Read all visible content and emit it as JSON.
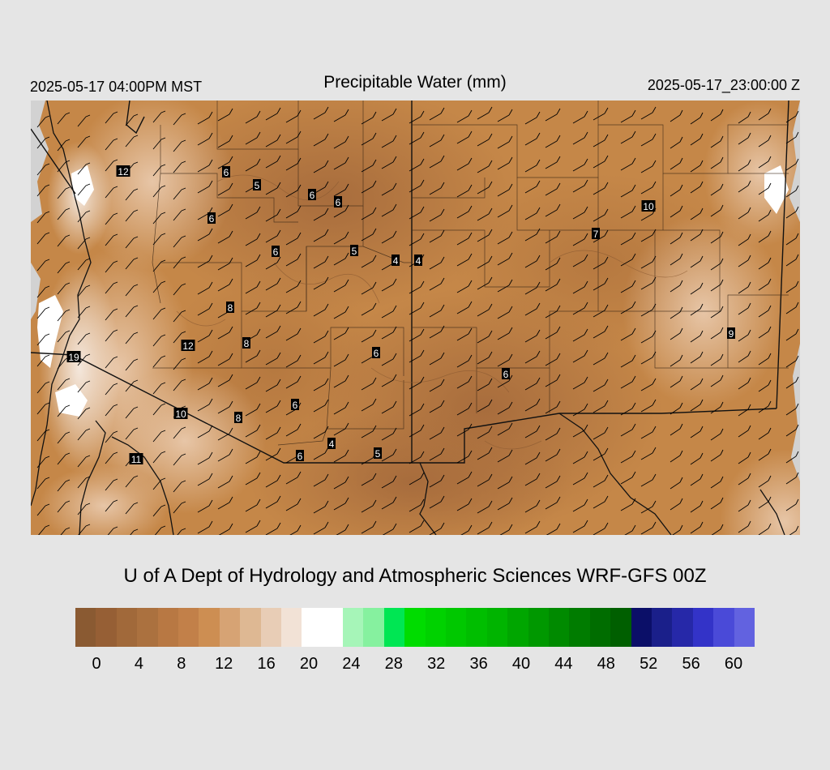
{
  "header": {
    "valid_local": "2025-05-17 04:00PM MST",
    "title": "Precipitable Water (mm)",
    "valid_utc": "2025-05-17_23:00:00 Z"
  },
  "credit": "U of A Dept of Hydrology and Atmospheric Sciences WRF-GFS 00Z",
  "colorbar": {
    "colors": [
      "#8a5a32",
      "#965f35",
      "#a1693a",
      "#ab713f",
      "#b87843",
      "#c28049",
      "#cd8e52",
      "#d6a374",
      "#deb893",
      "#e8cdb6",
      "#f2e2d6",
      "#ffffff",
      "#ffffff",
      "#a6f5b8",
      "#86f19f",
      "#00e653",
      "#00dc00",
      "#00d200",
      "#00c800",
      "#00be00",
      "#00b400",
      "#00a600",
      "#009800",
      "#008a00",
      "#007c00",
      "#006d00",
      "#005f00",
      "#0b0f68",
      "#1a1f8a",
      "#2628a8",
      "#3333c8",
      "#4a4ad8",
      "#6262e0"
    ],
    "tick_labels": [
      "0",
      "4",
      "8",
      "12",
      "16",
      "20",
      "24",
      "28",
      "32",
      "36",
      "40",
      "44",
      "48",
      "52",
      "56",
      "60"
    ]
  },
  "map": {
    "label_values": [
      "12",
      "6",
      "5",
      "6",
      "6",
      "6",
      "6",
      "5",
      "4",
      "4",
      "10",
      "7",
      "8",
      "12",
      "8",
      "6",
      "6",
      "9",
      "19",
      "10",
      "8",
      "6",
      "4",
      "5",
      "6",
      "11"
    ],
    "wind_barb": "wind-barb-icon"
  }
}
